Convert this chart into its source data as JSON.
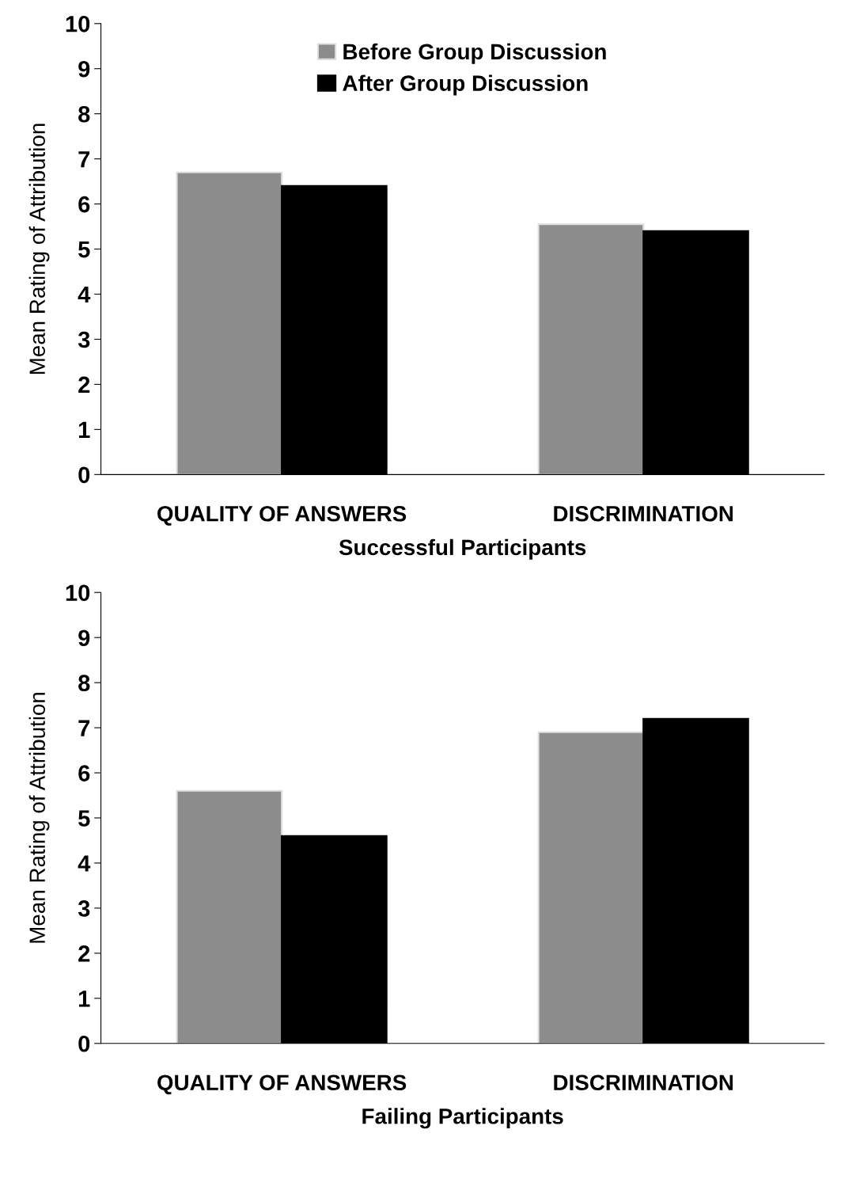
{
  "chart_data": [
    {
      "type": "bar",
      "categories": [
        "QUALITY OF ANSWERS",
        "DISCRIMINATION"
      ],
      "xlabel": "Successful Participants",
      "ylabel": "Mean Rating of Attribution",
      "ylim": [
        0,
        10
      ],
      "yticks": [
        0,
        1,
        2,
        3,
        4,
        5,
        6,
        7,
        8,
        9,
        10
      ],
      "legend": "top",
      "grid": false,
      "series": [
        {
          "name": "Before Group Discussion",
          "color": "#8c8c8c",
          "values": [
            6.7,
            5.55
          ]
        },
        {
          "name": "After Group Discussion",
          "color": "#000000",
          "values": [
            6.4,
            5.4
          ]
        }
      ]
    },
    {
      "type": "bar",
      "categories": [
        "QUALITY OF ANSWERS",
        "DISCRIMINATION"
      ],
      "xlabel": "Failing Participants",
      "ylabel": "Mean Rating of Attribution",
      "ylim": [
        0,
        10
      ],
      "yticks": [
        0,
        1,
        2,
        3,
        4,
        5,
        6,
        7,
        8,
        9,
        10
      ],
      "grid": false,
      "series": [
        {
          "color": "#8c8c8c",
          "values": [
            5.6,
            6.9
          ]
        },
        {
          "color": "#000000",
          "values": [
            4.6,
            7.2
          ]
        }
      ]
    }
  ]
}
